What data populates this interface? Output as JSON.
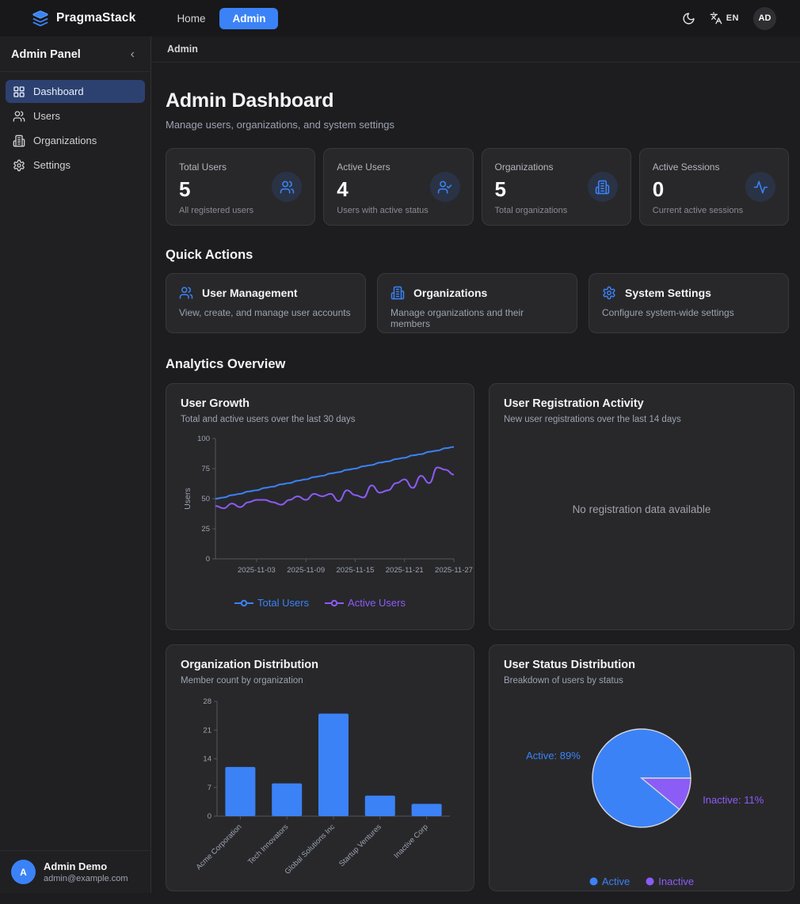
{
  "topbar": {
    "brand": "PragmaStack",
    "nav": [
      {
        "label": "Home",
        "active": false
      },
      {
        "label": "Admin",
        "active": true
      }
    ],
    "language": "EN",
    "avatar_initials": "AD"
  },
  "sidebar": {
    "title": "Admin Panel",
    "collapse_icon": "‹",
    "items": [
      {
        "label": "Dashboard",
        "icon": "dashboard-grid-icon",
        "active": true
      },
      {
        "label": "Users",
        "icon": "users-icon",
        "active": false
      },
      {
        "label": "Organizations",
        "icon": "building-icon",
        "active": false
      },
      {
        "label": "Settings",
        "icon": "gear-icon",
        "active": false
      }
    ],
    "user": {
      "initial": "A",
      "name": "Admin Demo",
      "email": "admin@example.com"
    }
  },
  "breadcrumb": "Admin",
  "page": {
    "title": "Admin Dashboard",
    "subtitle": "Manage users, organizations, and system settings"
  },
  "stats": [
    {
      "label": "Total Users",
      "value": "5",
      "description": "All registered users",
      "icon": "users-icon"
    },
    {
      "label": "Active Users",
      "value": "4",
      "description": "Users with active status",
      "icon": "user-check-icon"
    },
    {
      "label": "Organizations",
      "value": "5",
      "description": "Total organizations",
      "icon": "building-icon"
    },
    {
      "label": "Active Sessions",
      "value": "0",
      "description": "Current active sessions",
      "icon": "activity-icon"
    }
  ],
  "quick_actions": {
    "heading": "Quick Actions",
    "items": [
      {
        "title": "User Management",
        "description": "View, create, and manage user accounts",
        "icon": "users-icon"
      },
      {
        "title": "Organizations",
        "description": "Manage organizations and their members",
        "icon": "building-icon"
      },
      {
        "title": "System Settings",
        "description": "Configure system-wide settings",
        "icon": "gear-icon"
      }
    ]
  },
  "analytics_heading": "Analytics Overview",
  "colors": {
    "accent": "#3b82f6",
    "purple": "#8b5cf6",
    "axis": "#55555e",
    "tick_text": "#9ca3af"
  },
  "chart_data": [
    {
      "type": "line",
      "title": "User Growth",
      "subtitle": "Total and active users over the last 30 days",
      "ylabel": "Users",
      "ylim": [
        0,
        100
      ],
      "yticks": [
        0,
        25,
        50,
        75,
        100
      ],
      "x_ticks": [
        {
          "index": 5,
          "label": "2025-11-03"
        },
        {
          "index": 11,
          "label": "2025-11-09"
        },
        {
          "index": 17,
          "label": "2025-11-15"
        },
        {
          "index": 23,
          "label": "2025-11-21"
        },
        {
          "index": 29,
          "label": "2025-11-27"
        }
      ],
      "series": [
        {
          "name": "Total Users",
          "color": "#3b82f6",
          "values": [
            50,
            51,
            53,
            54,
            56,
            57,
            59,
            60,
            62,
            63,
            65,
            66,
            68,
            69,
            71,
            72,
            74,
            75,
            77,
            78,
            80,
            81,
            83,
            84,
            86,
            87,
            89,
            90,
            92,
            93
          ]
        },
        {
          "name": "Active Users",
          "color": "#8b5cf6",
          "values": [
            44,
            42,
            46,
            43,
            47,
            49,
            49,
            47,
            45,
            49,
            52,
            49,
            54,
            52,
            54,
            48,
            57,
            53,
            51,
            61,
            55,
            57,
            63,
            66,
            59,
            69,
            63,
            76,
            74,
            70
          ]
        }
      ],
      "legend_position": "bottom"
    },
    {
      "type": "empty",
      "title": "User Registration Activity",
      "subtitle": "New user registrations over the last 14 days",
      "message": "No registration data available"
    },
    {
      "type": "bar",
      "title": "Organization Distribution",
      "subtitle": "Member count by organization",
      "categories": [
        "Acme Corporation",
        "Tech Innovators",
        "Global Solutions Inc",
        "Startup Ventures",
        "Inactive Corp"
      ],
      "values": [
        12,
        8,
        25,
        5,
        3
      ],
      "ylim": [
        0,
        28
      ],
      "yticks": [
        0,
        7,
        14,
        21,
        28
      ],
      "bar_color": "#3b82f6"
    },
    {
      "type": "pie",
      "title": "User Status Distribution",
      "subtitle": "Breakdown of users by status",
      "slices": [
        {
          "name": "Active",
          "pct": 89,
          "color": "#3b82f6",
          "label": "Active: 89%"
        },
        {
          "name": "Inactive",
          "pct": 11,
          "color": "#8b5cf6",
          "label": "Inactive: 11%"
        }
      ],
      "rotation_deg": 39.6,
      "legend_position": "bottom"
    }
  ]
}
